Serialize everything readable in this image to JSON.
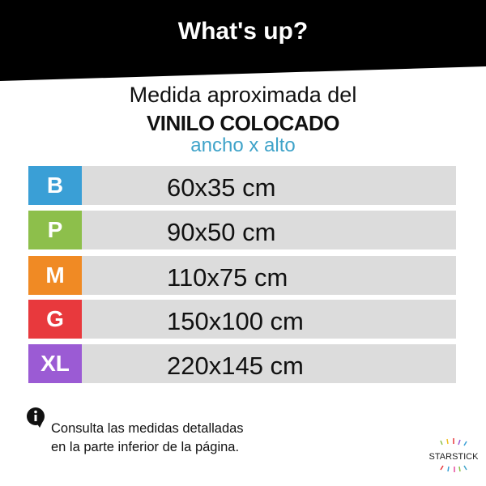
{
  "header": {
    "title": "What's up?"
  },
  "heading": {
    "line1": "Medida aproximada del",
    "line2": "VINILO COLOCADO",
    "line3": "ancho x alto"
  },
  "sizes": [
    {
      "label": "B",
      "value": "60x35 cm",
      "color": "#3a9fd6"
    },
    {
      "label": "P",
      "value": "90x50 cm",
      "color": "#8dbf4b"
    },
    {
      "label": "M",
      "value": "110x75 cm",
      "color": "#f08a24"
    },
    {
      "label": "G",
      "value": "150x100 cm",
      "color": "#e8393d"
    },
    {
      "label": "XL",
      "value": "220x145 cm",
      "color": "#9b5bd4"
    }
  ],
  "note": {
    "line1": "Consulta las medidas detalladas",
    "line2": "en la parte inferior de la página.",
    "icon": "info-icon"
  },
  "logo": {
    "text": "STARSTICK"
  }
}
